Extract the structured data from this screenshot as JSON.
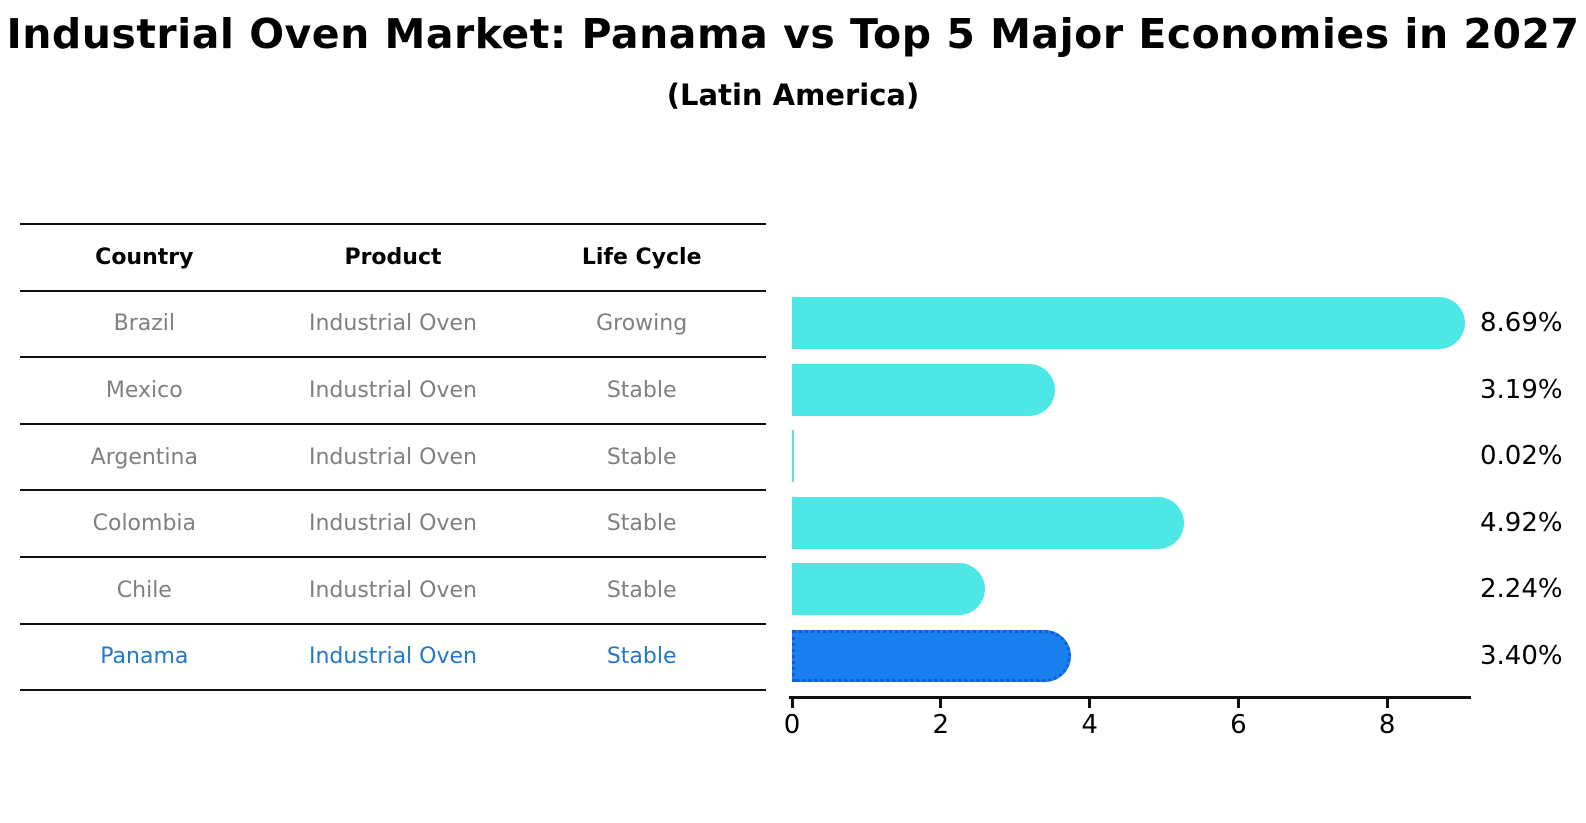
{
  "header": {
    "title": "Industrial Oven Market: Panama vs Top 5 Major Economies in 2027",
    "subtitle": "(Latin America)"
  },
  "table": {
    "headers": [
      "Country",
      "Product",
      "Life Cycle"
    ],
    "rows": [
      {
        "country": "Brazil",
        "product": "Industrial Oven",
        "life_cycle": "Growing",
        "highlight": false
      },
      {
        "country": "Mexico",
        "product": "Industrial Oven",
        "life_cycle": "Stable",
        "highlight": false
      },
      {
        "country": "Argentina",
        "product": "Industrial Oven",
        "life_cycle": "Stable",
        "highlight": false
      },
      {
        "country": "Colombia",
        "product": "Industrial Oven",
        "life_cycle": "Stable",
        "highlight": false
      },
      {
        "country": "Chile",
        "product": "Industrial Oven",
        "life_cycle": "Stable",
        "highlight": false
      },
      {
        "country": "Panama",
        "product": "Industrial Oven",
        "life_cycle": "Stable",
        "highlight": true
      }
    ],
    "text_color": "#808080",
    "highlight_text_color": "#2478C8"
  },
  "chart_data": {
    "type": "bar",
    "orientation": "horizontal",
    "title": "Industrial Oven Market: Panama vs Top 5 Major Economies in 2027",
    "subtitle": "(Latin America)",
    "categories": [
      "Brazil",
      "Mexico",
      "Argentina",
      "Colombia",
      "Chile",
      "Panama"
    ],
    "values": [
      8.69,
      3.19,
      0.02,
      4.92,
      2.24,
      3.4
    ],
    "value_labels": [
      "8.69%",
      "3.19%",
      "0.02%",
      "4.92%",
      "2.24%",
      "3.40%"
    ],
    "xlabel": "",
    "ylabel": "",
    "xlim": [
      0,
      9.1
    ],
    "x_ticks": [
      0,
      2,
      4,
      6,
      8
    ],
    "grid": false,
    "legend": false,
    "bar_color": "#4DE8E6",
    "highlight_index": 5,
    "highlight_bar_color": "#1A80F0",
    "highlight_bar_edge_color": "#0D5FD6",
    "highlight_bar_edge_style": "dotted"
  }
}
